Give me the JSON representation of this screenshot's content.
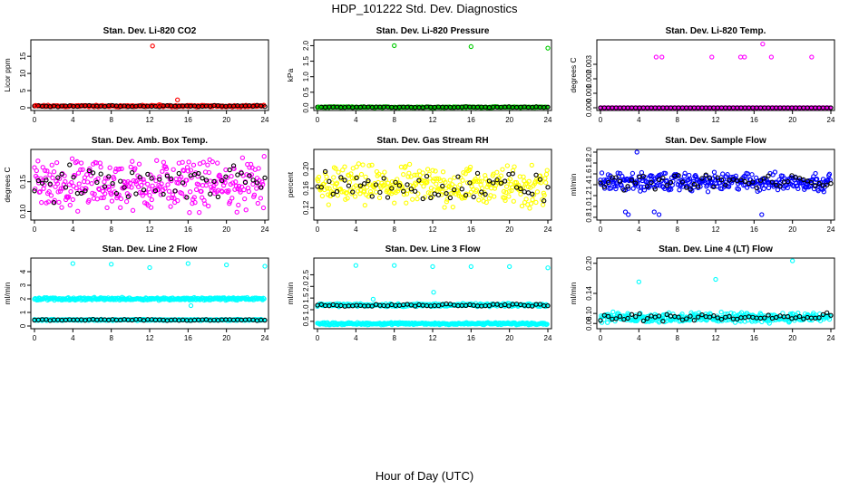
{
  "page": {
    "title": "HDP_101222  Std. Dev. Diagnostics",
    "xlabel": "Hour of Day (UTC)"
  },
  "chart_data": [
    {
      "type": "scatter",
      "title": "Stan. Dev. Li-820 CO2",
      "ylabel": "Licor ppm",
      "color": "#ff0000",
      "xlim": [
        0,
        24
      ],
      "xticks": [
        0,
        4,
        8,
        12,
        16,
        20,
        24
      ],
      "ylim": [
        0,
        19
      ],
      "yticks": [
        0,
        5,
        10,
        15
      ],
      "base": {
        "center": 0.5,
        "spread": 0.3
      },
      "outliers": [
        [
          12.3,
          18.0
        ],
        [
          13.0,
          0.9
        ],
        [
          14.9,
          2.3
        ],
        [
          0.1,
          0.6
        ]
      ]
    },
    {
      "type": "scatter",
      "title": "Stan. Dev. Li-820 Pressure",
      "ylabel": "kPa",
      "color": "#00cc00",
      "xlim": [
        0,
        24
      ],
      "xticks": [
        0,
        4,
        8,
        12,
        16,
        20,
        24
      ],
      "ylim": [
        0,
        2.1
      ],
      "yticks": [
        0.0,
        0.5,
        1.0,
        1.5,
        2.0
      ],
      "base": {
        "center": 0.02,
        "spread": 0.02
      },
      "outliers": [
        [
          8.0,
          2.0
        ],
        [
          16.0,
          1.97
        ],
        [
          24.0,
          1.92
        ],
        [
          0.1,
          0.02
        ]
      ]
    },
    {
      "type": "scatter",
      "title": "Stan. Dev. Li-820 Temp.",
      "ylabel": "degrees C",
      "color": "#ff00ff",
      "xlim": [
        0,
        24
      ],
      "xticks": [
        0,
        4,
        8,
        12,
        16,
        20,
        24
      ],
      "ylim": [
        0,
        0.0045
      ],
      "yticks": [
        0.0,
        0.001,
        0.002,
        0.003
      ],
      "base": {
        "center": 0.0,
        "spread": 0.0
      },
      "outliers": [
        [
          5.8,
          0.0035
        ],
        [
          6.4,
          0.0035
        ],
        [
          11.6,
          0.0035
        ],
        [
          14.6,
          0.0035
        ],
        [
          15.0,
          0.0035
        ],
        [
          16.9,
          0.0044
        ],
        [
          17.8,
          0.0035
        ],
        [
          22.0,
          0.0035
        ]
      ]
    },
    {
      "type": "scatter",
      "title": "Stan. Dev. Amb. Box Temp.",
      "ylabel": "degrees C",
      "color": "#ff00ff",
      "xlim": [
        0,
        24
      ],
      "xticks": [
        0,
        4,
        8,
        12,
        16,
        20,
        24
      ],
      "ylim": [
        0.09,
        0.2
      ],
      "yticks": [
        0.1,
        0.15
      ],
      "base": {
        "center": 0.145,
        "spread": 0.05
      },
      "outliers": []
    },
    {
      "type": "scatter",
      "title": "Stan. Dev. Gas Stream RH",
      "ylabel": "percent",
      "color": "#ffff00",
      "xlim": [
        0,
        24
      ],
      "xticks": [
        0,
        4,
        8,
        12,
        16,
        20,
        24
      ],
      "ylim": [
        0.1,
        0.235
      ],
      "yticks": [
        0.12,
        0.16,
        0.2
      ],
      "base": {
        "center": 0.165,
        "spread": 0.05
      },
      "outliers": []
    },
    {
      "type": "scatter",
      "title": "Stan. Dev. Sample Flow",
      "ylabel": "ml/min",
      "color": "#0000ff",
      "xlim": [
        0,
        24
      ],
      "xticks": [
        0,
        4,
        8,
        12,
        16,
        20,
        24
      ],
      "ylim": [
        0.8,
        2.0
      ],
      "yticks": [
        0.8,
        1.0,
        1.2,
        1.4,
        1.6,
        1.8,
        2.0
      ],
      "base": {
        "center": 1.45,
        "spread": 0.2
      },
      "outliers": [
        [
          3.8,
          2.0
        ],
        [
          2.6,
          0.9
        ],
        [
          2.9,
          0.85
        ],
        [
          5.6,
          0.9
        ],
        [
          6.1,
          0.85
        ],
        [
          16.8,
          0.85
        ]
      ]
    },
    {
      "type": "scatter",
      "title": "Stan. Dev. Line 2 Flow",
      "ylabel": "ml/min",
      "color": "#00ffff",
      "xlim": [
        0,
        24
      ],
      "xticks": [
        0,
        4,
        8,
        12,
        16,
        20,
        24
      ],
      "ylim": [
        0,
        4.8
      ],
      "yticks": [
        0,
        1,
        2,
        3,
        4
      ],
      "bands": [
        {
          "center": 2.0,
          "spread": 0.12
        },
        {
          "center": 0.45,
          "spread": 0.06
        }
      ],
      "outliers": [
        [
          4.0,
          4.6
        ],
        [
          8.0,
          4.55
        ],
        [
          12.0,
          4.3
        ],
        [
          16.0,
          4.6
        ],
        [
          20.0,
          4.5
        ],
        [
          24.0,
          4.4
        ],
        [
          16.3,
          1.5
        ]
      ]
    },
    {
      "type": "scatter",
      "title": "Stan. Dev. Line 3 Flow",
      "ylabel": "ml/min",
      "color": "#00ffff",
      "xlim": [
        0,
        24
      ],
      "xticks": [
        0,
        4,
        8,
        12,
        16,
        20,
        24
      ],
      "ylim": [
        0.3,
        3.1
      ],
      "yticks": [
        0.5,
        1.0,
        1.5,
        2.0,
        2.5
      ],
      "bands": [
        {
          "center": 1.2,
          "spread": 0.08
        },
        {
          "center": 0.4,
          "spread": 0.06
        }
      ],
      "outliers": [
        [
          4.0,
          2.9
        ],
        [
          8.0,
          2.9
        ],
        [
          12.0,
          2.85
        ],
        [
          16.0,
          2.85
        ],
        [
          20.0,
          2.85
        ],
        [
          24.0,
          2.8
        ],
        [
          12.1,
          1.75
        ],
        [
          5.8,
          1.45
        ]
      ]
    },
    {
      "type": "scatter",
      "title": "Stan. Dev. Line 4 (LT) Flow",
      "ylabel": "ml/min",
      "color": "#00ffff",
      "xlim": [
        0,
        24
      ],
      "xticks": [
        0,
        4,
        8,
        12,
        16,
        20,
        24
      ],
      "ylim": [
        0.075,
        0.205
      ],
      "yticks": [
        0.08,
        0.1,
        0.14,
        0.2
      ],
      "base": {
        "center": 0.092,
        "spread": 0.012
      },
      "outliers": [
        [
          4.0,
          0.163
        ],
        [
          12.0,
          0.168
        ],
        [
          20.0,
          0.205
        ]
      ]
    }
  ]
}
